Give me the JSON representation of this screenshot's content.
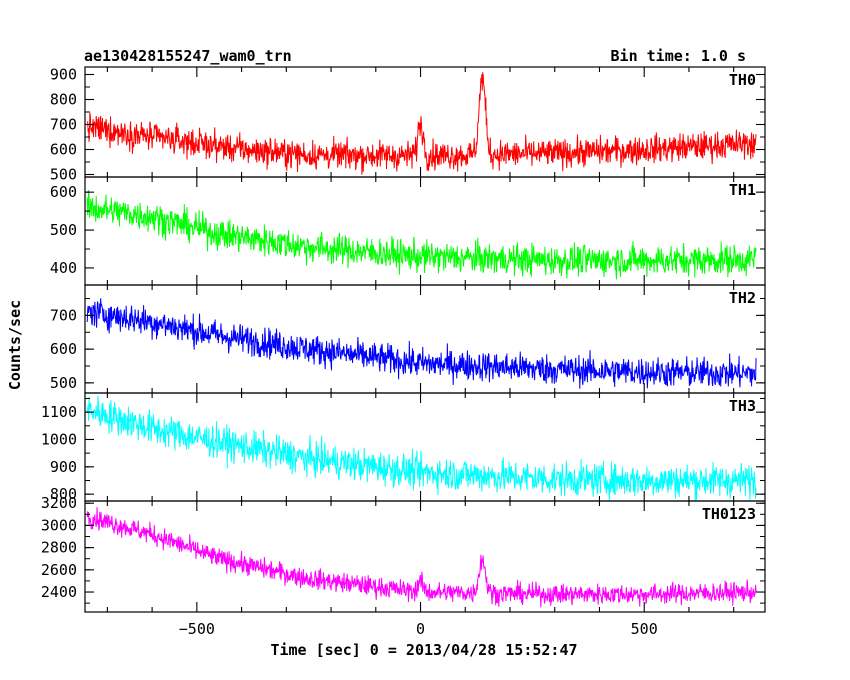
{
  "header": {
    "title": "ae130428155247_wam0_trn",
    "bin_time": "Bin time: 1.0 s"
  },
  "axes": {
    "xlabel": "Time [sec] 0 = 2013/04/28 15:52:47",
    "ylabel": "Counts/sec",
    "xlim": [
      -750,
      770
    ],
    "xticks": [
      -500,
      0,
      500
    ]
  },
  "chart_data": {
    "type": "line",
    "x_range": [
      -745,
      750
    ],
    "bin_seconds": 1.0,
    "panels": [
      {
        "name": "TH0",
        "color": "#ff0000",
        "ylim": [
          490,
          930
        ],
        "yticks": [
          500,
          600,
          700,
          800,
          900
        ],
        "noise": 28,
        "trend": [
          [
            -745,
            690
          ],
          [
            -600,
            650
          ],
          [
            -400,
            600
          ],
          [
            -250,
            578
          ],
          [
            0,
            575
          ],
          [
            300,
            585
          ],
          [
            500,
            600
          ],
          [
            750,
            625
          ]
        ],
        "peaks": [
          [
            0,
            130,
            6
          ],
          [
            138,
            310,
            7
          ]
        ]
      },
      {
        "name": "TH1",
        "color": "#00ff00",
        "ylim": [
          355,
          640
        ],
        "yticks": [
          400,
          500,
          600
        ],
        "noise": 20,
        "trend": [
          [
            -745,
            560
          ],
          [
            -600,
            535
          ],
          [
            -450,
            490
          ],
          [
            -250,
            455
          ],
          [
            0,
            430
          ],
          [
            300,
            420
          ],
          [
            500,
            420
          ],
          [
            750,
            422
          ]
        ],
        "peaks": []
      },
      {
        "name": "TH2",
        "color": "#0000ff",
        "ylim": [
          470,
          790
        ],
        "yticks": [
          500,
          600,
          700
        ],
        "noise": 22,
        "trend": [
          [
            -745,
            712
          ],
          [
            -600,
            680
          ],
          [
            -450,
            640
          ],
          [
            -250,
            600
          ],
          [
            0,
            558
          ],
          [
            300,
            540
          ],
          [
            500,
            532
          ],
          [
            750,
            528
          ]
        ],
        "peaks": []
      },
      {
        "name": "TH3",
        "color": "#00ffff",
        "ylim": [
          775,
          1170
        ],
        "yticks": [
          800,
          900,
          1000,
          1100
        ],
        "noise": 30,
        "trend": [
          [
            -745,
            1110
          ],
          [
            -600,
            1040
          ],
          [
            -450,
            990
          ],
          [
            -250,
            930
          ],
          [
            0,
            880
          ],
          [
            300,
            855
          ],
          [
            500,
            850
          ],
          [
            750,
            850
          ]
        ],
        "peaks": []
      },
      {
        "name": "TH0123",
        "color": "#ff00ff",
        "ylim": [
          2220,
          3220
        ],
        "yticks": [
          2400,
          2600,
          2800,
          3000,
          3200
        ],
        "noise": 45,
        "trend": [
          [
            -745,
            3080
          ],
          [
            -600,
            2920
          ],
          [
            -450,
            2700
          ],
          [
            -250,
            2520
          ],
          [
            0,
            2400
          ],
          [
            300,
            2380
          ],
          [
            500,
            2380
          ],
          [
            750,
            2400
          ]
        ],
        "peaks": [
          [
            0,
            90,
            6
          ],
          [
            138,
            310,
            7
          ]
        ]
      }
    ]
  }
}
